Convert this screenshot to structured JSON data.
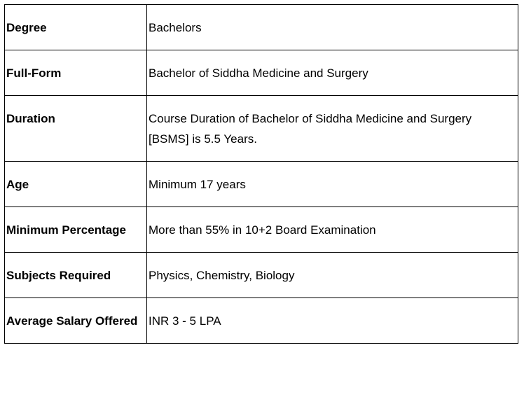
{
  "rows": [
    {
      "label": "Degree",
      "value": "Bachelors"
    },
    {
      "label": "Full-Form",
      "value": "Bachelor of Siddha Medicine and Surgery"
    },
    {
      "label": "Duration",
      "value": "Course Duration of Bachelor of Siddha Medicine and Surgery [BSMS] is 5.5 Years."
    },
    {
      "label": "Age",
      "value": "Minimum 17 years"
    },
    {
      "label": "Minimum Percentage",
      "value": "More than 55% in 10+2 Board Examination"
    },
    {
      "label": "Subjects Required",
      "value": "Physics, Chemistry, Biology"
    },
    {
      "label": "Average Salary Offered",
      "value": "INR 3 - 5 LPA"
    }
  ]
}
